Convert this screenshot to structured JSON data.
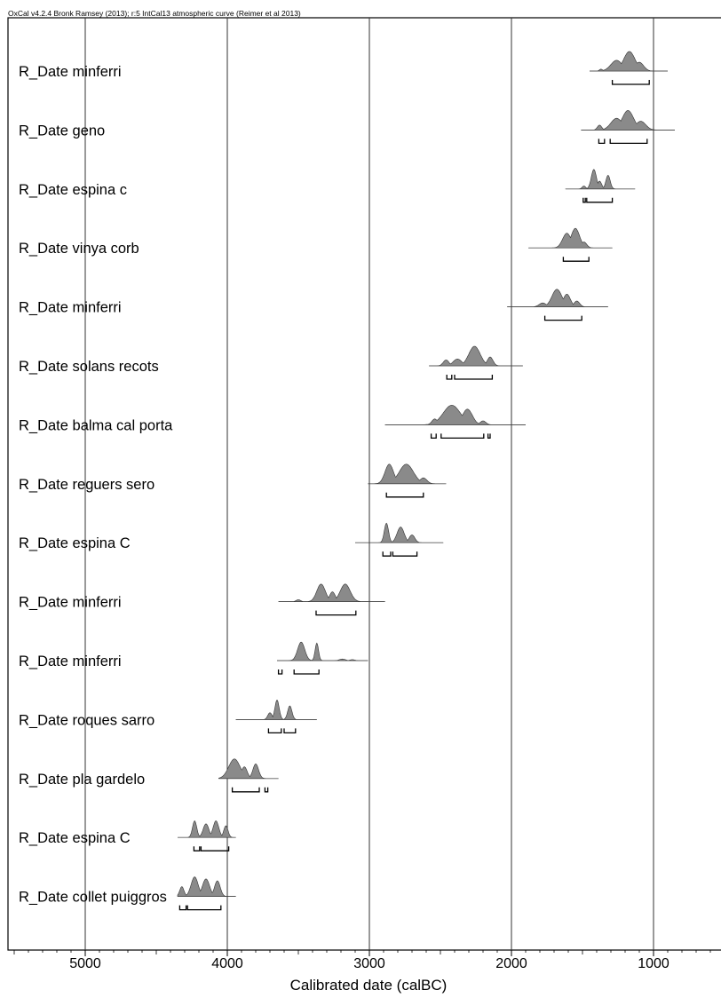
{
  "header": "OxCal v4.2.4 Bronk Ramsey (2013); r:5 IntCal13 atmospheric curve (Reimer et al 2013)",
  "chart_data": {
    "type": "area",
    "xlabel": "Calibrated date (calBC)",
    "xticks": [
      5000,
      4000,
      3000,
      2000,
      1000
    ],
    "xlim": [
      5550,
      500
    ],
    "x_reversed": true,
    "grid": "vertical",
    "fill_color": "#8a8a8a",
    "line_color": "#000000",
    "series": [
      {
        "label": "R_Date minferri",
        "range": [
          1450,
          900
        ],
        "peaks": [
          [
            1370,
            10,
            0.1
          ],
          [
            1260,
            40,
            0.55
          ],
          [
            1170,
            40,
            1.0
          ],
          [
            1100,
            30,
            0.45
          ]
        ],
        "brackets": [
          [
            1290,
            1030
          ]
        ]
      },
      {
        "label": "R_Date geno",
        "range": [
          1510,
          850
        ],
        "peaks": [
          [
            1380,
            15,
            0.25
          ],
          [
            1260,
            40,
            0.6
          ],
          [
            1180,
            40,
            1.0
          ],
          [
            1090,
            35,
            0.45
          ]
        ],
        "brackets": [
          [
            1385,
            1345
          ],
          [
            1305,
            1045
          ]
        ]
      },
      {
        "label": "R_Date espina c",
        "range": [
          1620,
          1130
        ],
        "peaks": [
          [
            1490,
            12,
            0.15
          ],
          [
            1420,
            18,
            1.0
          ],
          [
            1380,
            15,
            0.4
          ],
          [
            1320,
            15,
            0.7
          ]
        ],
        "brackets": [
          [
            1495,
            1480
          ],
          [
            1470,
            1290
          ]
        ]
      },
      {
        "label": "R_Date vinya corb",
        "range": [
          1880,
          1290
        ],
        "peaks": [
          [
            1610,
            30,
            0.75
          ],
          [
            1550,
            30,
            1.0
          ],
          [
            1490,
            20,
            0.3
          ]
        ],
        "brackets": [
          [
            1635,
            1455
          ]
        ]
      },
      {
        "label": "R_Date minferri",
        "range": [
          2030,
          1320
        ],
        "peaks": [
          [
            1780,
            25,
            0.2
          ],
          [
            1680,
            35,
            0.9
          ],
          [
            1610,
            25,
            0.65
          ],
          [
            1540,
            20,
            0.3
          ]
        ],
        "brackets": [
          [
            1765,
            1505
          ]
        ]
      },
      {
        "label": "R_Date solans recots",
        "range": [
          2580,
          1920
        ],
        "peaks": [
          [
            2460,
            20,
            0.3
          ],
          [
            2380,
            30,
            0.35
          ],
          [
            2260,
            40,
            1.0
          ],
          [
            2150,
            20,
            0.45
          ]
        ],
        "brackets": [
          [
            2455,
            2420
          ],
          [
            2400,
            2135
          ]
        ]
      },
      {
        "label": "R_Date balma cal porta",
        "range": [
          2890,
          1900
        ],
        "peaks": [
          [
            2540,
            20,
            0.3
          ],
          [
            2420,
            60,
            1.0
          ],
          [
            2310,
            35,
            0.8
          ],
          [
            2200,
            20,
            0.2
          ]
        ],
        "brackets": [
          [
            2565,
            2530
          ],
          [
            2495,
            2195
          ],
          [
            2165,
            2150
          ]
        ]
      },
      {
        "label": "R_Date reguers sero",
        "range": [
          3010,
          2460
        ],
        "peaks": [
          [
            2860,
            30,
            1.0
          ],
          [
            2740,
            50,
            1.0
          ],
          [
            2620,
            25,
            0.3
          ]
        ],
        "brackets": [
          [
            2880,
            2620
          ]
        ]
      },
      {
        "label": "R_Date espina C",
        "range": [
          3100,
          2480
        ],
        "peaks": [
          [
            2880,
            15,
            1.0
          ],
          [
            2780,
            25,
            0.8
          ],
          [
            2700,
            20,
            0.4
          ]
        ],
        "brackets": [
          [
            2905,
            2850
          ],
          [
            2835,
            2665
          ]
        ]
      },
      {
        "label": "R_Date minferri",
        "range": [
          3640,
          2890
        ],
        "peaks": [
          [
            3500,
            15,
            0.1
          ],
          [
            3340,
            30,
            0.9
          ],
          [
            3260,
            20,
            0.5
          ],
          [
            3170,
            35,
            0.9
          ]
        ],
        "brackets": [
          [
            3375,
            3095
          ]
        ]
      },
      {
        "label": "R_Date minferri",
        "range": [
          3650,
          3010
        ],
        "peaks": [
          [
            3480,
            25,
            0.95
          ],
          [
            3370,
            12,
            0.9
          ],
          [
            3190,
            20,
            0.08
          ],
          [
            3120,
            15,
            0.05
          ]
        ],
        "brackets": [
          [
            3640,
            3615
          ],
          [
            3530,
            3355
          ]
        ]
      },
      {
        "label": "R_Date roques sarro",
        "range": [
          3940,
          3370
        ],
        "peaks": [
          [
            3700,
            15,
            0.35
          ],
          [
            3650,
            15,
            1.0
          ],
          [
            3560,
            15,
            0.7
          ]
        ],
        "brackets": [
          [
            3710,
            3620
          ],
          [
            3600,
            3520
          ]
        ]
      },
      {
        "label": "R_Date pla gardelo",
        "range": [
          4060,
          3640
        ],
        "peaks": [
          [
            3950,
            40,
            1.0
          ],
          [
            3880,
            20,
            0.6
          ],
          [
            3800,
            20,
            0.75
          ]
        ],
        "brackets": [
          [
            3965,
            3775
          ],
          [
            3735,
            3715
          ]
        ]
      },
      {
        "label": "R_Date espina C",
        "range": [
          4350,
          3940
        ],
        "peaks": [
          [
            4230,
            15,
            0.85
          ],
          [
            4150,
            20,
            0.7
          ],
          [
            4080,
            20,
            0.85
          ],
          [
            4010,
            15,
            0.6
          ]
        ],
        "brackets": [
          [
            4235,
            4195
          ],
          [
            4185,
            3990
          ]
        ]
      },
      {
        "label": "R_Date collet puiggros",
        "range": [
          4350,
          3940
        ],
        "peaks": [
          [
            4320,
            15,
            0.5
          ],
          [
            4230,
            25,
            1.0
          ],
          [
            4150,
            25,
            0.9
          ],
          [
            4070,
            20,
            0.8
          ]
        ],
        "brackets": [
          [
            4335,
            4290
          ],
          [
            4280,
            4045
          ]
        ]
      }
    ]
  }
}
